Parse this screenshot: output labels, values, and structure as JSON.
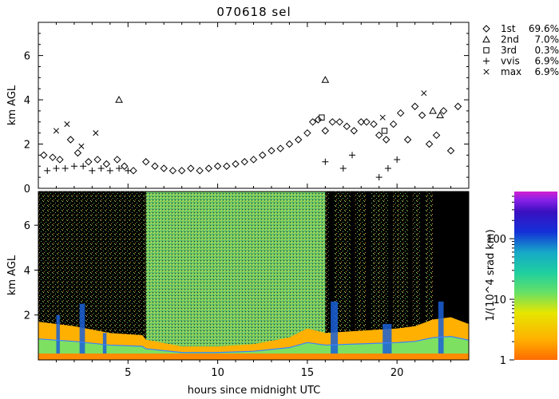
{
  "chart_data": [
    {
      "panel": "top",
      "type": "scatter",
      "title": "070618 sel",
      "ylabel": "km AGL",
      "xlim": [
        0,
        24
      ],
      "ylim": [
        0,
        7.5
      ],
      "yticks": [
        0,
        2,
        4,
        6
      ],
      "legend_position": "right",
      "series": [
        {
          "name": "1st",
          "marker": "diamond",
          "percent": "69.6%",
          "x": [
            0.3,
            0.8,
            1.2,
            1.8,
            2.2,
            2.8,
            3.3,
            3.8,
            4.4,
            4.8,
            5.3,
            6.0,
            6.5,
            7.0,
            7.5,
            8.0,
            8.5,
            9.0,
            9.5,
            10.0,
            10.5,
            11.0,
            11.5,
            12.0,
            12.5,
            13.0,
            13.5,
            14.0,
            14.5,
            15.0,
            15.3,
            15.6,
            16.0,
            16.4,
            16.8,
            17.2,
            17.6,
            18.0,
            18.3,
            18.7,
            19.0,
            19.4,
            19.8,
            20.2,
            20.6,
            21.0,
            21.4,
            21.8,
            22.2,
            22.6,
            23.0,
            23.4
          ],
          "y": [
            1.5,
            1.4,
            1.3,
            2.2,
            1.6,
            1.2,
            1.3,
            1.1,
            1.3,
            1.0,
            0.8,
            1.2,
            1.0,
            0.9,
            0.8,
            0.8,
            0.9,
            0.8,
            0.9,
            1.0,
            1.0,
            1.1,
            1.2,
            1.3,
            1.5,
            1.7,
            1.8,
            2.0,
            2.2,
            2.5,
            3.0,
            3.1,
            2.6,
            3.0,
            3.0,
            2.8,
            2.6,
            3.0,
            3.0,
            2.9,
            2.4,
            2.2,
            2.9,
            3.4,
            2.2,
            3.7,
            3.3,
            2.0,
            2.4,
            3.5,
            1.7,
            3.7
          ]
        },
        {
          "name": "2nd",
          "marker": "triangle",
          "percent": "7.0%",
          "x": [
            4.5,
            16.0,
            22.0,
            22.4
          ],
          "y": [
            4.0,
            4.9,
            3.5,
            3.3
          ]
        },
        {
          "name": "3rd",
          "marker": "square",
          "percent": "0.3%",
          "x": [
            15.8,
            19.3
          ],
          "y": [
            3.2,
            2.6
          ]
        },
        {
          "name": "vvis",
          "marker": "plus",
          "percent": "6.9%",
          "x": [
            0.5,
            1.0,
            1.5,
            2.0,
            2.5,
            3.0,
            3.5,
            4.0,
            4.5,
            5.0,
            16.0,
            17.0,
            17.5,
            19.0,
            19.5,
            20.0
          ],
          "y": [
            0.8,
            0.9,
            0.9,
            1.0,
            1.0,
            0.8,
            0.9,
            0.8,
            0.9,
            0.8,
            1.2,
            0.9,
            1.5,
            0.5,
            0.9,
            1.3
          ]
        },
        {
          "name": "max",
          "marker": "cross",
          "percent": "6.9%",
          "x": [
            1.0,
            1.6,
            2.4,
            3.2,
            19.2,
            21.5
          ],
          "y": [
            2.6,
            2.9,
            1.9,
            2.5,
            3.2,
            4.3
          ]
        }
      ]
    },
    {
      "panel": "bottom",
      "type": "heatmap",
      "xlabel": "hours since midnight UTC",
      "ylabel": "km AGL",
      "xlim": [
        0,
        24
      ],
      "ylim": [
        0,
        7.5
      ],
      "xticks": [
        5,
        10,
        15,
        20
      ],
      "yticks": [
        2,
        4,
        6
      ],
      "colorbar": {
        "label": "1/(10^4 srad km)",
        "scale": "log",
        "range": [
          1,
          600
        ],
        "ticks": [
          1,
          10,
          100
        ],
        "colors": [
          "#ff6a00",
          "#ffb000",
          "#e6e600",
          "#66e066",
          "#1ecfa0",
          "#16a8c8",
          "#1430d8",
          "#3a10c0",
          "#8a20e8",
          "#d020d0"
        ]
      }
    }
  ]
}
